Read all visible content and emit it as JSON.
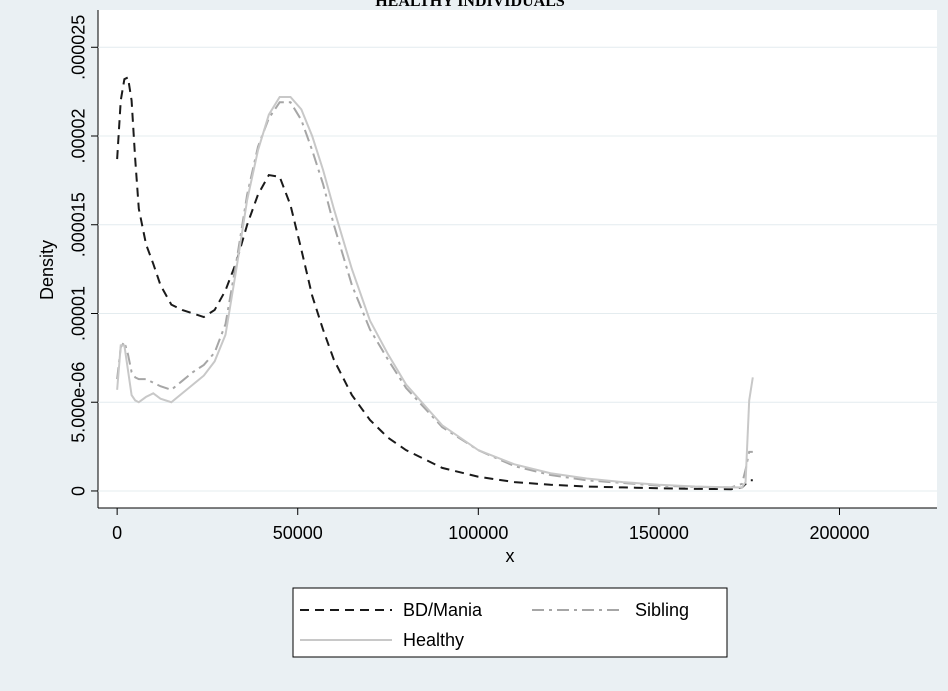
{
  "chart_data": {
    "type": "line",
    "title": "HEALTHY INDIVIDUALS",
    "x_label": "x",
    "y_label": "Density",
    "x": [
      0,
      1000,
      2000,
      3000,
      4000,
      5000,
      6000,
      8000,
      10000,
      12000,
      15000,
      18000,
      21000,
      24000,
      27000,
      30000,
      33000,
      36000,
      39000,
      42000,
      45000,
      48000,
      51000,
      54000,
      57000,
      60000,
      65000,
      70000,
      75000,
      80000,
      90000,
      100000,
      110000,
      120000,
      130000,
      140000,
      150000,
      160000,
      170000,
      173000,
      174000,
      175000,
      176000
    ],
    "series": [
      {
        "name": "BD/Mania",
        "color": "#1a1a1a",
        "dash": "dashed",
        "values": [
          1.87e-05,
          2.2e-05,
          2.32e-05,
          2.33e-05,
          2.2e-05,
          1.87e-05,
          1.59e-05,
          1.39e-05,
          1.28e-05,
          1.16e-05,
          1.05e-05,
          1.02e-05,
          1e-05,
          9.8e-06,
          1.02e-05,
          1.13e-05,
          1.29e-05,
          1.5e-05,
          1.67e-05,
          1.78e-05,
          1.77e-05,
          1.61e-05,
          1.36e-05,
          1.1e-05,
          9.1e-06,
          7.4e-06,
          5.4e-06,
          4e-06,
          3e-06,
          2.3e-06,
          1.3e-06,
          8e-07,
          5e-07,
          3.5e-07,
          2.5e-07,
          2e-07,
          1.5e-07,
          1.2e-07,
          1e-07,
          2e-07,
          4e-07,
          6e-07,
          6e-07
        ]
      },
      {
        "name": "Sibling",
        "color": "#a6a6a6",
        "dash": "dashdot",
        "values": [
          6.3e-06,
          8.1e-06,
          8.4e-06,
          7.7e-06,
          6.7e-06,
          6.4e-06,
          6.3e-06,
          6.3e-06,
          6.1e-06,
          5.9e-06,
          5.7e-06,
          6.2e-06,
          6.7e-06,
          7.1e-06,
          7.8e-06,
          9.4e-06,
          1.29e-05,
          1.67e-05,
          1.94e-05,
          2.1e-05,
          2.19e-05,
          2.19e-05,
          2.09e-05,
          1.92e-05,
          1.73e-05,
          1.5e-05,
          1.16e-05,
          9.1e-06,
          7.4e-06,
          5.8e-06,
          3.6e-06,
          2.3e-06,
          1.4e-06,
          9e-07,
          6e-07,
          4.5e-07,
          3e-07,
          2.3e-07,
          2e-07,
          4e-07,
          1.2e-06,
          2.2e-06,
          2.2e-06
        ]
      },
      {
        "name": "Healthy",
        "color": "#c8c8c8",
        "dash": "solid",
        "values": [
          5.7e-06,
          8.2e-06,
          8.2e-06,
          6.8e-06,
          5.4e-06,
          5.1e-06,
          5e-06,
          5.3e-06,
          5.5e-06,
          5.2e-06,
          5e-06,
          5.5e-06,
          6e-06,
          6.5e-06,
          7.3e-06,
          8.8e-06,
          1.25e-05,
          1.64e-05,
          1.92e-05,
          2.12e-05,
          2.22e-05,
          2.22e-05,
          2.15e-05,
          2e-05,
          1.81e-05,
          1.59e-05,
          1.25e-05,
          9.6e-06,
          7.7e-06,
          6e-06,
          3.7e-06,
          2.3e-06,
          1.5e-06,
          1e-06,
          7e-07,
          5e-07,
          3.5e-07,
          2.5e-07,
          2e-07,
          2e-07,
          5e-07,
          5.1e-06,
          6.4e-06
        ]
      }
    ],
    "xlim": [
      -5300,
      227000
    ],
    "xticks": [
      0,
      50000,
      100000,
      150000,
      200000
    ],
    "ylim": [
      -9.6e-07,
      2.71e-05
    ],
    "yticks": [
      0,
      {
        "value": 5e-06,
        "label": "5.000e-06"
      },
      {
        "value": 1e-05,
        "label": ".00001"
      },
      {
        "value": 1.5e-05,
        "label": ".000015"
      },
      {
        "value": 2e-05,
        "label": ".00002"
      },
      {
        "value": 2.5e-05,
        "label": ".000025"
      }
    ],
    "grid": true,
    "legend_position": "bottom"
  }
}
